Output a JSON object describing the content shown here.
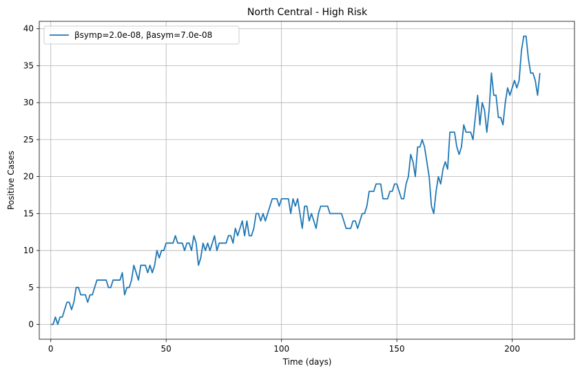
{
  "chart_data": {
    "type": "line",
    "title": "North Central - High Risk",
    "xlabel": "Time (days)",
    "ylabel": "Positive Cases",
    "xlim": [
      -5,
      227
    ],
    "ylim": [
      -2,
      41
    ],
    "xticks": [
      0,
      50,
      100,
      150,
      200
    ],
    "yticks": [
      0,
      5,
      10,
      15,
      20,
      25,
      30,
      35,
      40
    ],
    "grid": true,
    "legend_position": "top-left",
    "series": [
      {
        "name": "βsymp=2.0e-08, βasym=7.0e-08",
        "color": "#1f77b4",
        "x": [
          0,
          1,
          2,
          3,
          4,
          5,
          6,
          7,
          8,
          9,
          10,
          11,
          12,
          13,
          14,
          15,
          16,
          17,
          18,
          19,
          20,
          21,
          22,
          23,
          24,
          25,
          26,
          27,
          28,
          29,
          30,
          31,
          32,
          33,
          34,
          35,
          36,
          37,
          38,
          39,
          40,
          41,
          42,
          43,
          44,
          45,
          46,
          47,
          48,
          49,
          50,
          51,
          52,
          53,
          54,
          55,
          56,
          57,
          58,
          59,
          60,
          61,
          62,
          63,
          64,
          65,
          66,
          67,
          68,
          69,
          70,
          71,
          72,
          73,
          74,
          75,
          76,
          77,
          78,
          79,
          80,
          81,
          82,
          83,
          84,
          85,
          86,
          87,
          88,
          89,
          90,
          91,
          92,
          93,
          94,
          95,
          96,
          97,
          98,
          99,
          100,
          101,
          102,
          103,
          104,
          105,
          106,
          107,
          108,
          109,
          110,
          111,
          112,
          113,
          114,
          115,
          116,
          117,
          118,
          119,
          120,
          121,
          122,
          123,
          124,
          125,
          126,
          127,
          128,
          129,
          130,
          131,
          132,
          133,
          134,
          135,
          136,
          137,
          138,
          139,
          140,
          141,
          142,
          143,
          144,
          145,
          146,
          147,
          148,
          149,
          150,
          151,
          152,
          153,
          154,
          155,
          156,
          157,
          158,
          159,
          160,
          161,
          162,
          163,
          164,
          165,
          166,
          167,
          168,
          169,
          170,
          171,
          172,
          173,
          174,
          175,
          176,
          177,
          178,
          179,
          180,
          181,
          182,
          183,
          184,
          185,
          186,
          187,
          188,
          189,
          190,
          191,
          192,
          193,
          194,
          195,
          196,
          197,
          198,
          199,
          200,
          201,
          202,
          203,
          204,
          205,
          206,
          207,
          208,
          209,
          210,
          211,
          212
        ],
        "values": [
          0,
          0,
          1,
          0,
          1,
          1,
          2,
          3,
          3,
          2,
          3,
          5,
          5,
          4,
          4,
          4,
          3,
          4,
          4,
          5,
          6,
          6,
          6,
          6,
          6,
          5,
          5,
          6,
          6,
          6,
          6,
          7,
          4,
          5,
          5,
          6,
          8,
          7,
          6,
          8,
          8,
          8,
          7,
          8,
          7,
          8,
          10,
          9,
          10,
          10,
          11,
          11,
          11,
          11,
          12,
          11,
          11,
          11,
          10,
          11,
          11,
          10,
          12,
          11,
          8,
          9,
          11,
          10,
          11,
          10,
          11,
          12,
          10,
          11,
          11,
          11,
          11,
          12,
          12,
          11,
          13,
          12,
          13,
          14,
          12,
          14,
          12,
          12,
          13,
          15,
          15,
          14,
          15,
          14,
          15,
          16,
          17,
          17,
          17,
          16,
          17,
          17,
          17,
          17,
          15,
          17,
          16,
          17,
          15,
          13,
          16,
          16,
          14,
          15,
          14,
          13,
          15,
          16,
          16,
          16,
          16,
          15,
          15,
          15,
          15,
          15,
          15,
          14,
          13,
          13,
          13,
          14,
          14,
          13,
          14,
          15,
          15,
          16,
          18,
          18,
          18,
          19,
          19,
          19,
          17,
          17,
          17,
          18,
          18,
          19,
          19,
          18,
          17,
          17,
          19,
          20,
          23,
          22,
          20,
          24,
          24,
          25,
          24,
          22,
          20,
          16,
          15,
          18,
          20,
          19,
          21,
          22,
          21,
          26,
          26,
          26,
          24,
          23,
          24,
          27,
          26,
          26,
          26,
          25,
          28,
          31,
          27,
          30,
          29,
          26,
          29,
          34,
          31,
          31,
          28,
          28,
          27,
          30,
          32,
          31,
          32,
          33,
          32,
          33,
          37,
          39,
          39,
          36,
          34,
          34,
          33,
          31,
          34
        ]
      }
    ]
  }
}
